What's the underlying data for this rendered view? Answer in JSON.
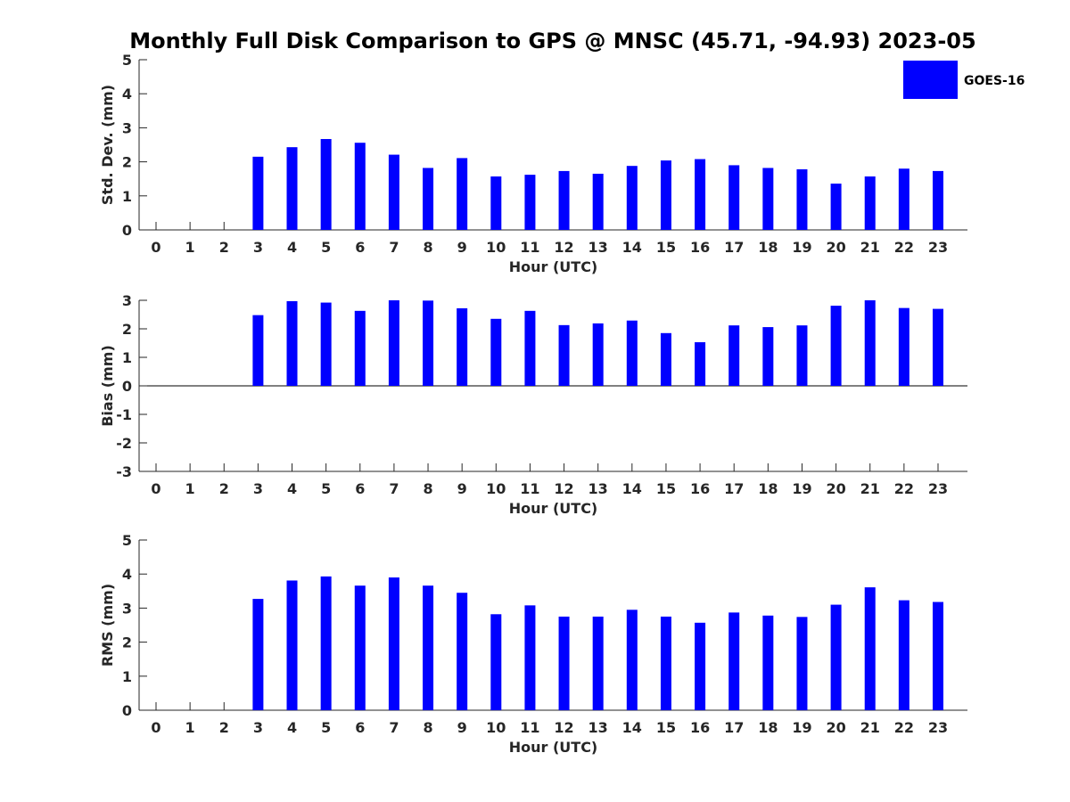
{
  "title": "Monthly Full Disk Comparison to GPS @ MNSC (45.71, -94.93) 2023-05",
  "legend": {
    "label": "GOES-16",
    "color": "#0000ff"
  },
  "chart_data": [
    {
      "type": "bar",
      "title": "",
      "xlabel": "Hour (UTC)",
      "ylabel": "Std. Dev. (mm)",
      "categories": [
        "0",
        "1",
        "2",
        "3",
        "4",
        "5",
        "6",
        "7",
        "8",
        "9",
        "10",
        "11",
        "12",
        "13",
        "14",
        "15",
        "16",
        "17",
        "18",
        "19",
        "20",
        "21",
        "22",
        "23"
      ],
      "yticks": [
        "0",
        "1",
        "2",
        "3",
        "4",
        "5"
      ],
      "ylim": [
        0,
        5
      ],
      "series": [
        {
          "name": "GOES-16",
          "color": "#0000ff",
          "values": [
            null,
            null,
            null,
            2.15,
            2.43,
            2.67,
            2.56,
            2.21,
            1.82,
            2.11,
            1.57,
            1.62,
            1.73,
            1.65,
            1.88,
            2.04,
            2.08,
            1.9,
            1.82,
            1.78,
            1.36,
            1.57,
            1.8,
            1.73
          ]
        }
      ],
      "zero_line": false,
      "grid": false
    },
    {
      "type": "bar",
      "title": "",
      "xlabel": "Hour (UTC)",
      "ylabel": "Bias (mm)",
      "categories": [
        "0",
        "1",
        "2",
        "3",
        "4",
        "5",
        "6",
        "7",
        "8",
        "9",
        "10",
        "11",
        "12",
        "13",
        "14",
        "15",
        "16",
        "17",
        "18",
        "19",
        "20",
        "21",
        "22",
        "23"
      ],
      "yticks": [
        "-3",
        "-2",
        "-1",
        "0",
        "1",
        "2",
        "3"
      ],
      "ylim": [
        -3,
        3
      ],
      "series": [
        {
          "name": "GOES-16",
          "color": "#0000ff",
          "values": [
            null,
            null,
            null,
            2.48,
            2.97,
            2.92,
            2.63,
            3.0,
            2.99,
            2.72,
            2.35,
            2.63,
            2.13,
            2.19,
            2.29,
            1.85,
            1.53,
            2.12,
            2.06,
            2.12,
            2.81,
            3.0,
            2.73,
            2.7
          ]
        }
      ],
      "zero_line": true,
      "grid": false
    },
    {
      "type": "bar",
      "title": "",
      "xlabel": "Hour (UTC)",
      "ylabel": "RMS (mm)",
      "categories": [
        "0",
        "1",
        "2",
        "3",
        "4",
        "5",
        "6",
        "7",
        "8",
        "9",
        "10",
        "11",
        "12",
        "13",
        "14",
        "15",
        "16",
        "17",
        "18",
        "19",
        "20",
        "21",
        "22",
        "23"
      ],
      "yticks": [
        "0",
        "1",
        "2",
        "3",
        "4",
        "5"
      ],
      "ylim": [
        0,
        5
      ],
      "series": [
        {
          "name": "GOES-16",
          "color": "#0000ff",
          "values": [
            null,
            null,
            null,
            3.27,
            3.81,
            3.93,
            3.66,
            3.9,
            3.66,
            3.45,
            2.82,
            3.08,
            2.75,
            2.75,
            2.95,
            2.75,
            2.57,
            2.87,
            2.78,
            2.74,
            3.1,
            3.61,
            3.23,
            3.18
          ]
        }
      ],
      "zero_line": false,
      "grid": false
    }
  ]
}
